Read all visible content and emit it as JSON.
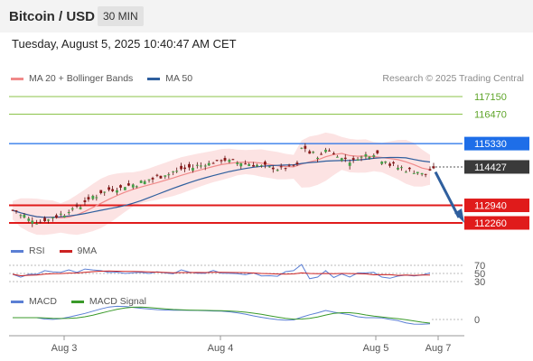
{
  "header": {
    "title": "Bitcoin / USD",
    "interval": "30 MIN"
  },
  "datetime": "Tuesday, August 5, 2025 10:40:47 AM CET",
  "legend_main": [
    {
      "label": "MA 20 + Bollinger Bands",
      "color": "#f08a8a"
    },
    {
      "label": "MA 50",
      "color": "#2f5f9e"
    }
  ],
  "credit": "Research © 2025 Trading Central",
  "legend_rsi": [
    {
      "label": "RSI",
      "color": "#5b7fd4"
    },
    {
      "label": "9MA",
      "color": "#cc2222"
    }
  ],
  "legend_macd": [
    {
      "label": "MACD",
      "color": "#5b7fd4"
    },
    {
      "label": "MACD Signal",
      "color": "#3a9a2a"
    }
  ],
  "chart_data": {
    "type": "candlestick",
    "instrument": "Bitcoin / USD",
    "x_ticks": [
      "Aug 3",
      "Aug 4",
      "Aug 5",
      "Aug 7"
    ],
    "price_levels": [
      {
        "label": "117150",
        "value": 117150,
        "color": "#8bc34a",
        "style": "resistance-thin"
      },
      {
        "label": "116470",
        "value": 116470,
        "color": "#8bc34a",
        "style": "resistance-thin"
      },
      {
        "label": "115330",
        "value": 115330,
        "color": "#1e6ee8",
        "style": "pivot"
      },
      {
        "label": "114427",
        "value": 114427,
        "color": "#333333",
        "style": "last-price"
      },
      {
        "label": "112940",
        "value": 112940,
        "color": "#e01b1b",
        "style": "support"
      },
      {
        "label": "112260",
        "value": 112260,
        "color": "#e01b1b",
        "style": "support"
      }
    ],
    "close_series": [
      112750,
      112550,
      112400,
      112300,
      112380,
      112500,
      112600,
      112750,
      112900,
      113100,
      113300,
      113450,
      113550,
      113600,
      113700,
      113750,
      113850,
      113950,
      114050,
      114150,
      114250,
      114350,
      114400,
      114480,
      114550,
      114620,
      114700,
      114650,
      114600,
      114550,
      114500,
      114450,
      114400,
      114350,
      114400,
      114480,
      115150,
      114950,
      114850,
      115100,
      114900,
      114750,
      114650,
      114800,
      114900,
      114950,
      114700,
      114500,
      114400,
      114300,
      114250,
      114150,
      114300
    ],
    "forecast_target": 112260,
    "rsi": {
      "ticks": [
        "70",
        "50",
        "30"
      ]
    },
    "macd": {
      "ticks": [
        "0"
      ]
    }
  }
}
